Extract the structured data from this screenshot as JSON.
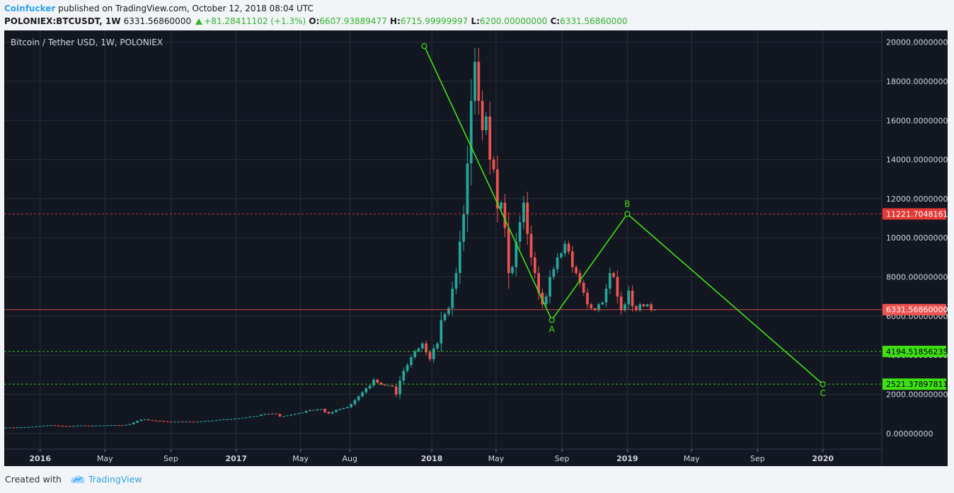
{
  "header": {
    "author": "Coinfucker",
    "published": "published on TradingView.com, October 12, 2018 08:04 UTC",
    "symbol": "POLONIEX:BTCUSDT, 1W",
    "last": "6331.56860000",
    "change": "+81.28411102 (+1.3%)",
    "o_label": "O:",
    "o_value": "6607.93889477",
    "h_label": "H:",
    "h_value": "6715.99999997",
    "l_label": "L:",
    "l_value": "6200.00000000",
    "c_label": "C:",
    "c_value": "6331.56860000"
  },
  "footer": {
    "created_with": "Created with",
    "brand": "TradingView",
    "logo_icon": "tradingview-cloud-icon"
  },
  "colors": {
    "background": "#131722",
    "up": "#26a69a",
    "down": "#ef5350",
    "drawing": "#3ee10f",
    "grid": "#2a2e39",
    "axis_text": "#d1d4dc"
  },
  "chart_data": {
    "type": "candlestick",
    "title": "Bitcoin / Tether USD, 1W, POLONIEX",
    "ylim": [
      -800,
      20600
    ],
    "xlim": [
      "2015-10-26",
      "2020-04-20"
    ],
    "y_ticks": [
      "20000.00000000",
      "18000.00000000",
      "16000.00000000",
      "14000.00000000",
      "12000.00000000",
      "10000.00000000",
      "8000.00000000",
      "6000.00000000",
      "4000.00000000",
      "2000.00000000",
      "0.00000000"
    ],
    "x_ticks": [
      {
        "label": "2016",
        "date": "2016-01-01",
        "bold": true
      },
      {
        "label": "May",
        "date": "2016-05-01",
        "bold": false
      },
      {
        "label": "Sep",
        "date": "2016-09-01",
        "bold": false
      },
      {
        "label": "2017",
        "date": "2017-01-01",
        "bold": true
      },
      {
        "label": "May",
        "date": "2017-05-01",
        "bold": false
      },
      {
        "label": "Aug",
        "date": "2017-08-01",
        "bold": false
      },
      {
        "label": "2018",
        "date": "2018-01-01",
        "bold": true
      },
      {
        "label": "May",
        "date": "2018-05-01",
        "bold": false
      },
      {
        "label": "Sep",
        "date": "2018-09-01",
        "bold": false
      },
      {
        "label": "2019",
        "date": "2019-01-01",
        "bold": true
      },
      {
        "label": "May",
        "date": "2019-05-01",
        "bold": false
      },
      {
        "label": "Sep",
        "date": "2019-09-01",
        "bold": false
      },
      {
        "label": "2020",
        "date": "2020-01-01",
        "bold": true
      }
    ],
    "price_lines": [
      {
        "value": 11221.70481617,
        "label": "11221.70481617",
        "color": "#e53935"
      },
      {
        "value": 6331.5686,
        "label": "6331.56860000",
        "color": "#ef5350"
      },
      {
        "value": 4194.51856235,
        "label": "4194.51856235",
        "color": "#3ee10f"
      },
      {
        "value": 2521.37897811,
        "label": "2521.37897811",
        "color": "#3ee10f"
      }
    ],
    "wave_points": [
      {
        "date": "2017-12-18",
        "value": 19800,
        "label": ""
      },
      {
        "date": "2018-08-13",
        "value": 5800,
        "label": "A"
      },
      {
        "date": "2019-01-01",
        "value": 11221.7,
        "label": "B"
      },
      {
        "date": "2020-01-01",
        "value": 2521.4,
        "label": "C"
      }
    ],
    "weekly_close": [
      300,
      305,
      300,
      310,
      315,
      320,
      335,
      345,
      360,
      380,
      395,
      410,
      420,
      405,
      395,
      380,
      375,
      365,
      380,
      400,
      410,
      405,
      395,
      400,
      405,
      410,
      415,
      420,
      425,
      430,
      420,
      410,
      440,
      480,
      560,
      640,
      700,
      720,
      680,
      660,
      650,
      640,
      620,
      600,
      590,
      600,
      610,
      600,
      610,
      605,
      600,
      610,
      620,
      640,
      650,
      660,
      680,
      700,
      720,
      730,
      740,
      760,
      780,
      800,
      820,
      860,
      880,
      900,
      960,
      1000,
      990,
      1020,
      990,
      880,
      890,
      920,
      960,
      1000,
      1040,
      1070,
      1150,
      1200,
      1180,
      1230,
      1250,
      1100,
      1020,
      1100,
      1200,
      1250,
      1300,
      1350,
      1500,
      1700,
      1900,
      2100,
      2300,
      2450,
      2750,
      2600,
      2500,
      2450,
      2450,
      2400,
      2000,
      2700,
      3200,
      3500,
      3900,
      4200,
      4350,
      4600,
      4150,
      3800,
      4350,
      4600,
      5800,
      6100,
      6400,
      7400,
      8200,
      9800,
      11200,
      13800,
      17000,
      19000,
      17000,
      15500,
      16200,
      14000,
      13500,
      11500,
      11800,
      10500,
      8200,
      8500,
      9800,
      10800,
      11800,
      10200,
      9000,
      8200,
      7200,
      6600,
      7000,
      8000,
      8400,
      9000,
      9200,
      9700,
      9300,
      8500,
      8200,
      7700,
      7200,
      6600,
      6400,
      6300,
      6600,
      6700,
      7400,
      8200,
      8000,
      7000,
      6300,
      6600,
      7300,
      6500,
      6300,
      6600,
      6500,
      6600,
      6300,
      6331
    ]
  }
}
